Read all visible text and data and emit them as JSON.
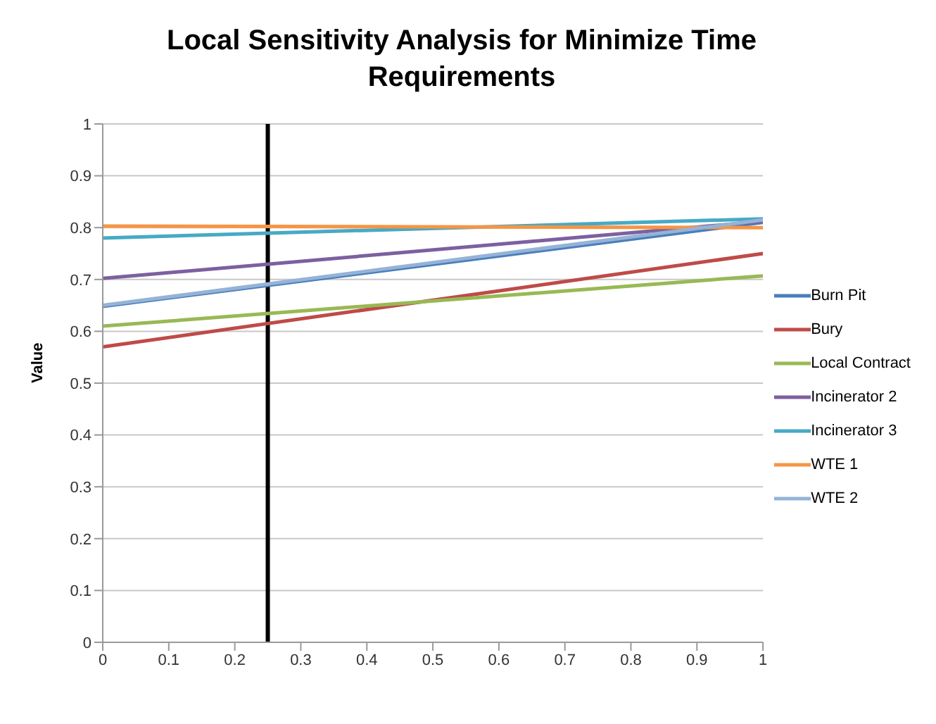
{
  "chart_data": {
    "type": "line",
    "title": "Local Sensitivity Analysis for Minimize Time Requirements",
    "ylabel": "Value",
    "x": [
      0,
      1
    ],
    "series": [
      {
        "name": "Burn Pit",
        "color": "#4a7ebb",
        "values": [
          0.648,
          0.81
        ]
      },
      {
        "name": "Bury",
        "color": "#be4b48",
        "values": [
          0.57,
          0.75
        ]
      },
      {
        "name": "Local Contract",
        "color": "#98b954",
        "values": [
          0.61,
          0.707
        ]
      },
      {
        "name": "Incinerator 2",
        "color": "#7d60a0",
        "values": [
          0.702,
          0.812
        ]
      },
      {
        "name": "Incinerator 3",
        "color": "#46aac5",
        "values": [
          0.78,
          0.817
        ]
      },
      {
        "name": "WTE 1",
        "color": "#f69545",
        "values": [
          0.803,
          0.8
        ]
      },
      {
        "name": "WTE 2",
        "color": "#95b3d7",
        "values": [
          0.65,
          0.815
        ]
      }
    ],
    "xlim": [
      0,
      1
    ],
    "xticks": [
      0,
      0.1,
      0.2,
      0.3,
      0.4,
      0.5,
      0.6,
      0.7,
      0.8,
      0.9,
      1
    ],
    "ylim": [
      0,
      1
    ],
    "yticks": [
      0,
      0.1,
      0.2,
      0.3,
      0.4,
      0.5,
      0.6,
      0.7,
      0.8,
      0.9,
      1
    ],
    "ref_lines": [
      {
        "axis": "x",
        "value": 0.25,
        "color": "#000000"
      }
    ],
    "grid": "y",
    "legend": "right",
    "marker": "none",
    "line_style": "solid"
  }
}
